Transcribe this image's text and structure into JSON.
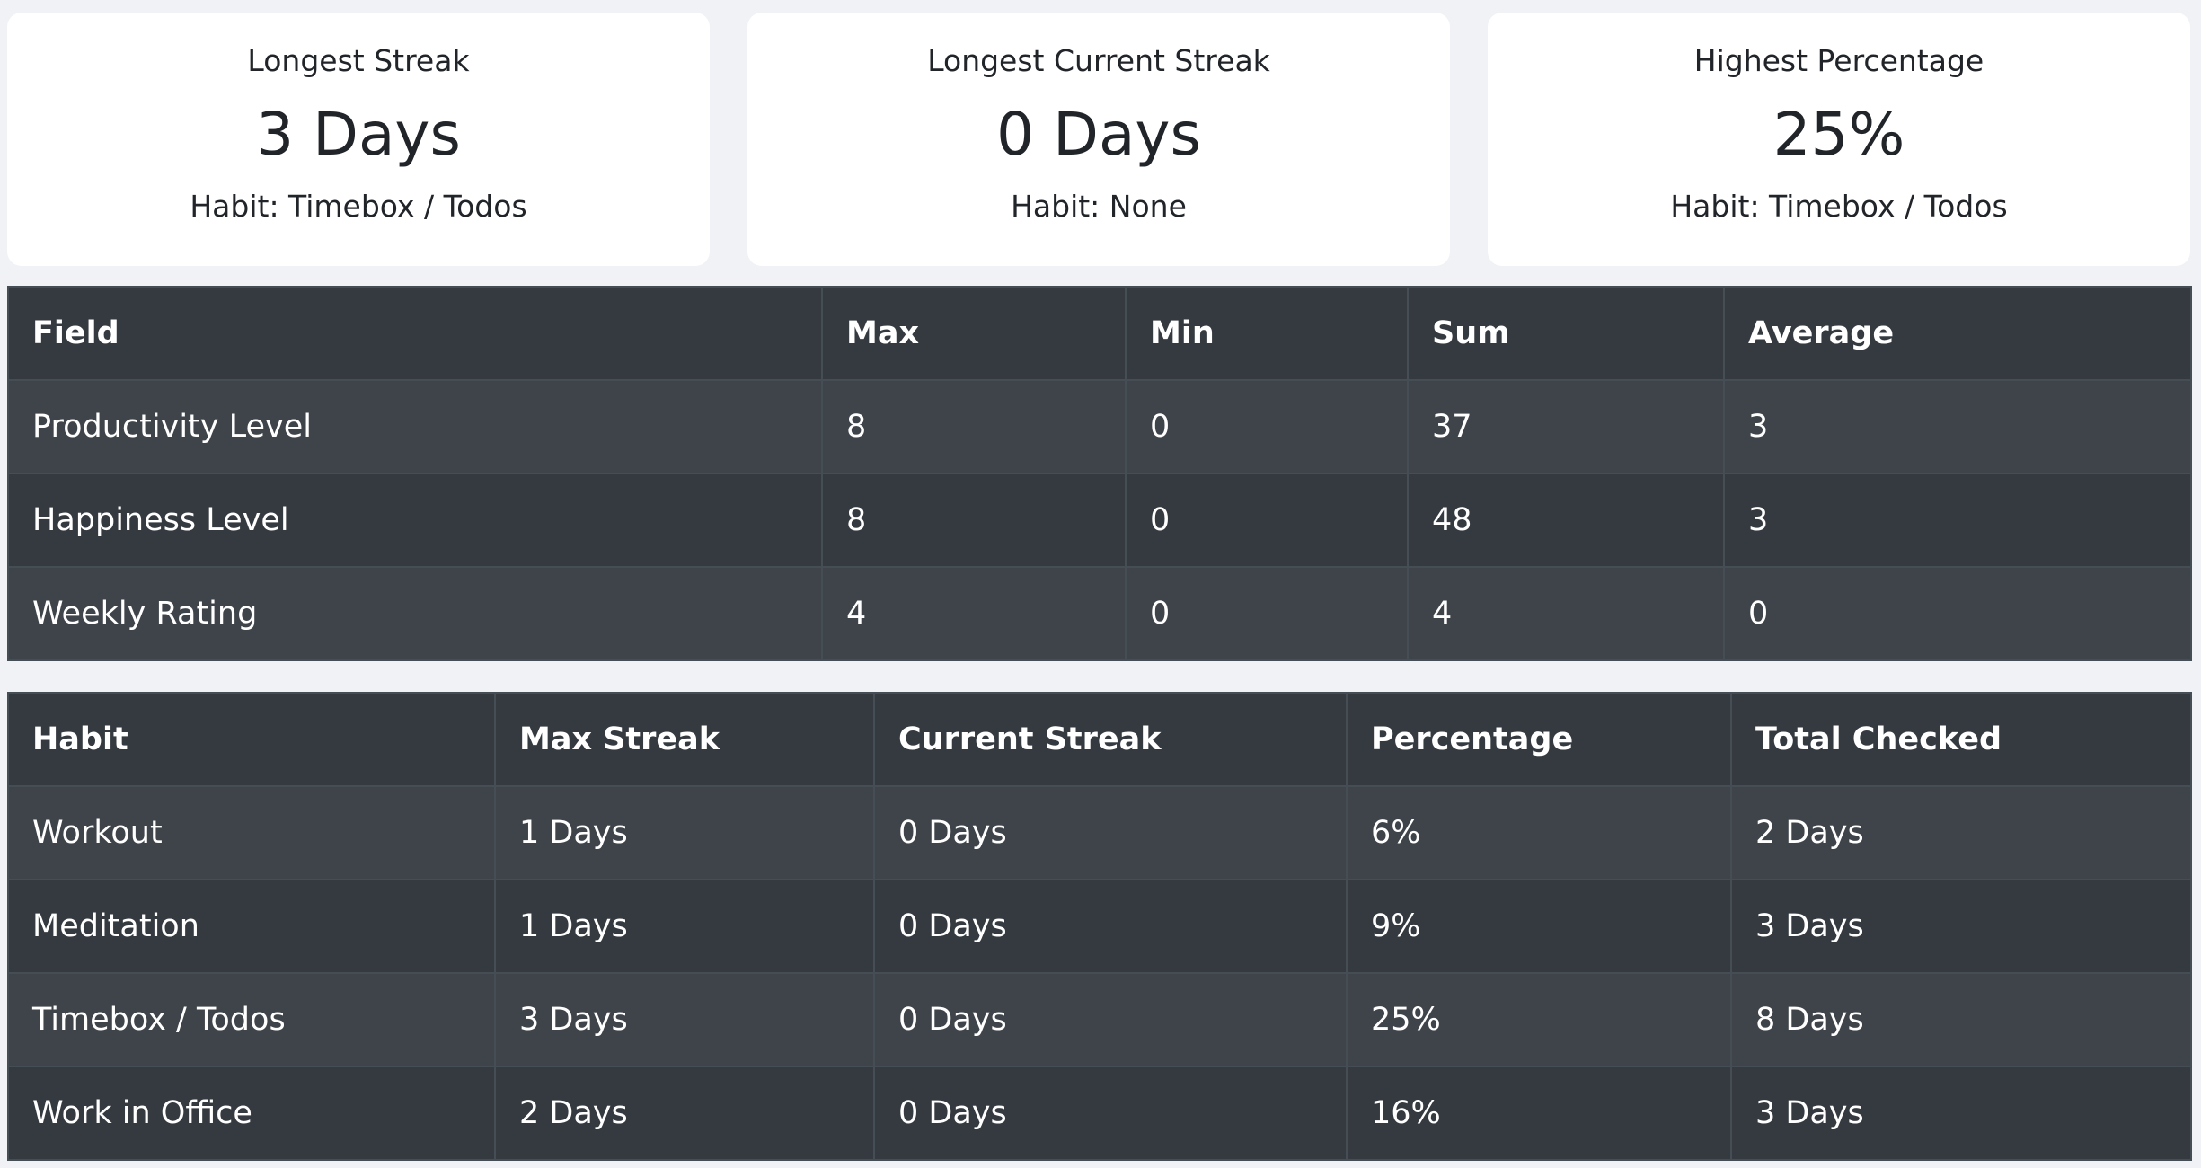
{
  "cards": [
    {
      "title": "Longest Streak",
      "value": "3 Days",
      "sub": "Habit: Timebox / Todos"
    },
    {
      "title": "Longest Current Streak",
      "value": "0 Days",
      "sub": "Habit: None"
    },
    {
      "title": "Highest Percentage",
      "value": "25%",
      "sub": "Habit: Timebox / Todos"
    }
  ],
  "stats_table": {
    "headers": [
      "Field",
      "Max",
      "Min",
      "Sum",
      "Average"
    ],
    "rows": [
      [
        "Productivity Level",
        "8",
        "0",
        "37",
        "3"
      ],
      [
        "Happiness Level",
        "8",
        "0",
        "48",
        "3"
      ],
      [
        "Weekly Rating",
        "4",
        "0",
        "4",
        "0"
      ]
    ]
  },
  "habits_table": {
    "headers": [
      "Habit",
      "Max Streak",
      "Current Streak",
      "Percentage",
      "Total Checked"
    ],
    "rows": [
      [
        "Workout",
        "1 Days",
        "0 Days",
        "6%",
        "2 Days"
      ],
      [
        "Meditation",
        "1 Days",
        "0 Days",
        "9%",
        "3 Days"
      ],
      [
        "Timebox / Todos",
        "3 Days",
        "0 Days",
        "25%",
        "8 Days"
      ],
      [
        "Work in Office",
        "2 Days",
        "0 Days",
        "16%",
        "3 Days"
      ]
    ]
  },
  "colors": {
    "page_bg": "#f1f2f6",
    "card_bg": "#ffffff",
    "table_header_bg": "#343a40",
    "table_row_odd_bg": "#3e444a",
    "table_row_even_bg": "#343a40",
    "table_text": "#ffffff"
  }
}
